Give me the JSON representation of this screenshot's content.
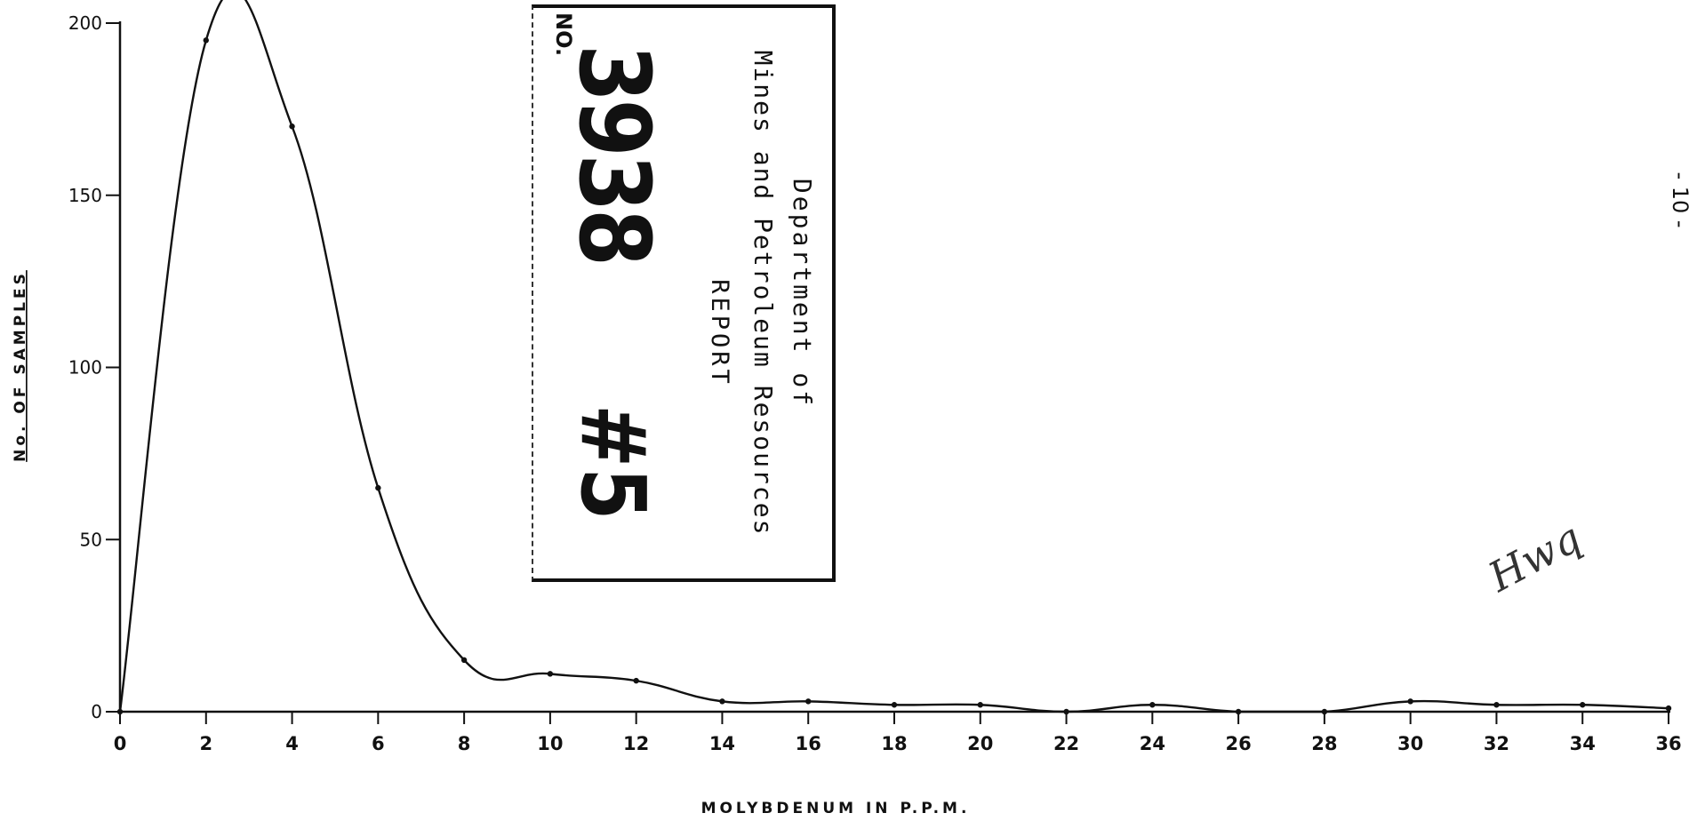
{
  "chart_data": {
    "type": "line",
    "xlabel": "MOLYBDENUM   IN P.P.M.",
    "ylabel": "No. OF SAMPLES",
    "xlim": [
      0,
      36
    ],
    "ylim": [
      0,
      200
    ],
    "xticks": [
      0,
      2,
      4,
      6,
      8,
      10,
      12,
      14,
      16,
      18,
      20,
      22,
      24,
      26,
      28,
      30,
      32,
      34,
      36
    ],
    "yticks": [
      0,
      50,
      100,
      150,
      200
    ],
    "ytick_labels": [
      "0",
      "50",
      "100",
      "150",
      "200"
    ],
    "grid": false,
    "series": [
      {
        "x": [
          0,
          2,
          4,
          6,
          8,
          10,
          12,
          14,
          16,
          18,
          20,
          22,
          24,
          26,
          28,
          30,
          32,
          34,
          36
        ],
        "y": [
          0,
          195,
          170,
          65,
          15,
          11,
          9,
          3,
          3,
          2,
          2,
          0,
          2,
          0,
          0,
          3,
          2,
          2,
          1
        ]
      }
    ]
  },
  "stamp": {
    "line1": "Department of",
    "line2": "Mines and Petroleum Resources",
    "line3": "REPORT",
    "no_label": "NO.",
    "number": "3938",
    "hash": "#5"
  },
  "page_number": "- 10 -",
  "initials": "Hwq"
}
